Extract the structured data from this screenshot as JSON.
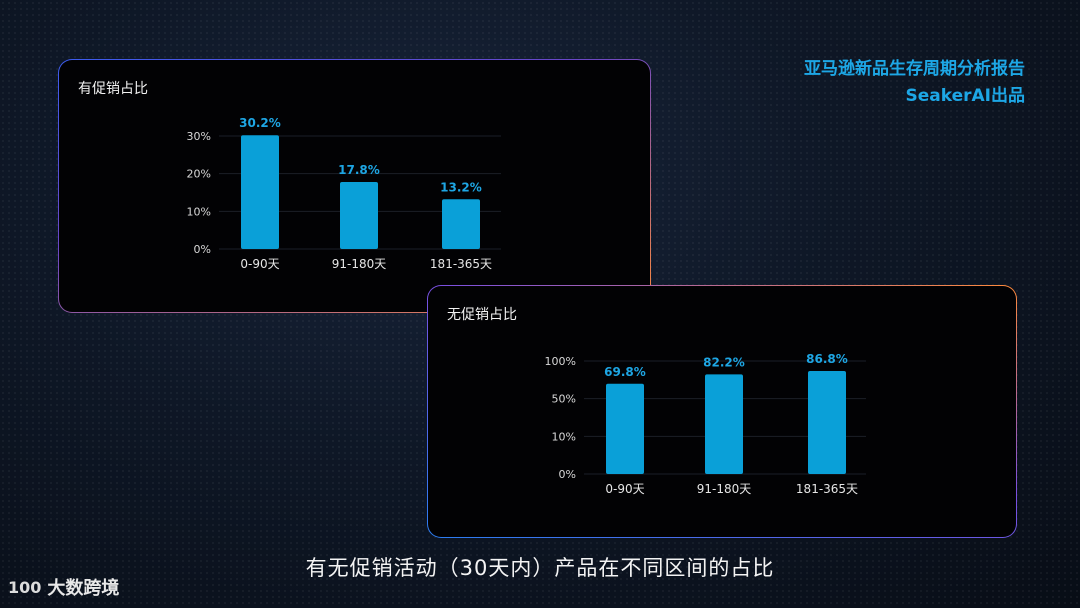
{
  "header": {
    "line1": "亚马逊新品生存周期分析报告",
    "line2": "SeakerAI出品"
  },
  "caption": "有无促销活动（30天内）产品在不同区间的占比",
  "logo": {
    "mark": "100",
    "text": "大数跨境"
  },
  "colors": {
    "accent": "#1da7e6",
    "bar": "#0aa0d8"
  },
  "chart_data": [
    {
      "type": "bar",
      "title": "有促销占比",
      "categories": [
        "0-90天",
        "91-180天",
        "181-365天"
      ],
      "values": [
        30.2,
        17.8,
        13.2
      ],
      "value_labels": [
        "30.2%",
        "17.8%",
        "13.2%"
      ],
      "yticks": [
        "0%",
        "10%",
        "20%",
        "30%"
      ],
      "ylim": [
        0,
        30
      ],
      "grid": true
    },
    {
      "type": "bar",
      "title": "无促销占比",
      "categories": [
        "0-90天",
        "91-180天",
        "181-365天"
      ],
      "values": [
        69.8,
        82.2,
        86.8
      ],
      "value_labels": [
        "69.8%",
        "82.2%",
        "86.8%"
      ],
      "yticks": [
        "0%",
        "10%",
        "50%",
        "100%"
      ],
      "ylim": [
        0,
        100
      ],
      "grid": true
    }
  ]
}
